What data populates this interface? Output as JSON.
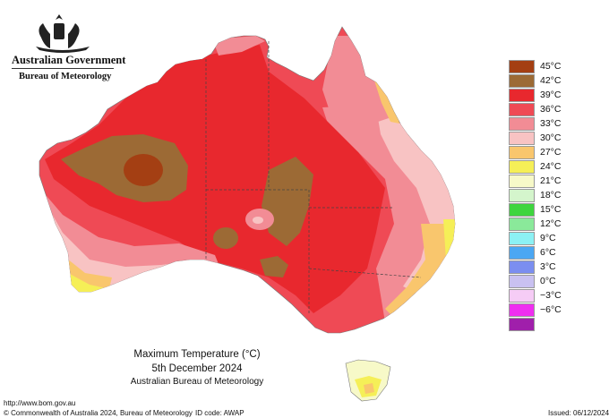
{
  "header": {
    "government": "Australian Government",
    "bureau": "Bureau of Meteorology"
  },
  "map_title": {
    "line1": "Maximum Temperature (°C)",
    "line2": "5th December 2024",
    "line3": "Australian Bureau of Meteorology"
  },
  "legend": [
    {
      "label": "45°C",
      "color": "#a43f13"
    },
    {
      "label": "42°C",
      "color": "#9c6a35"
    },
    {
      "label": "39°C",
      "color": "#e8282e"
    },
    {
      "label": "36°C",
      "color": "#ef4a55"
    },
    {
      "label": "33°C",
      "color": "#f28c95"
    },
    {
      "label": "30°C",
      "color": "#f8c3c3"
    },
    {
      "label": "27°C",
      "color": "#f9c66d"
    },
    {
      "label": "24°C",
      "color": "#f5ef57"
    },
    {
      "label": "21°C",
      "color": "#f7f9c8"
    },
    {
      "label": "18°C",
      "color": "#d4f5cc"
    },
    {
      "label": "15°C",
      "color": "#3ed53e"
    },
    {
      "label": "12°C",
      "color": "#8ae99a"
    },
    {
      "label": "9°C",
      "color": "#8cf1f4"
    },
    {
      "label": "6°C",
      "color": "#4ba7f3"
    },
    {
      "label": "3°C",
      "color": "#7b8ef0"
    },
    {
      "label": "0°C",
      "color": "#c9c1f1"
    },
    {
      "label": "−3°C",
      "color": "#f6ccf6"
    },
    {
      "label": "−6°C",
      "color": "#ef2ef0"
    },
    {
      "label": "",
      "color": "#a01fab"
    }
  ],
  "footer": {
    "url": "http://www.bom.gov.au",
    "copyright": "© Commonwealth of Australia 2024, Bureau of Meteorology",
    "id_code": "ID code: AWAP",
    "issued": "Issued: 06/12/2024"
  }
}
